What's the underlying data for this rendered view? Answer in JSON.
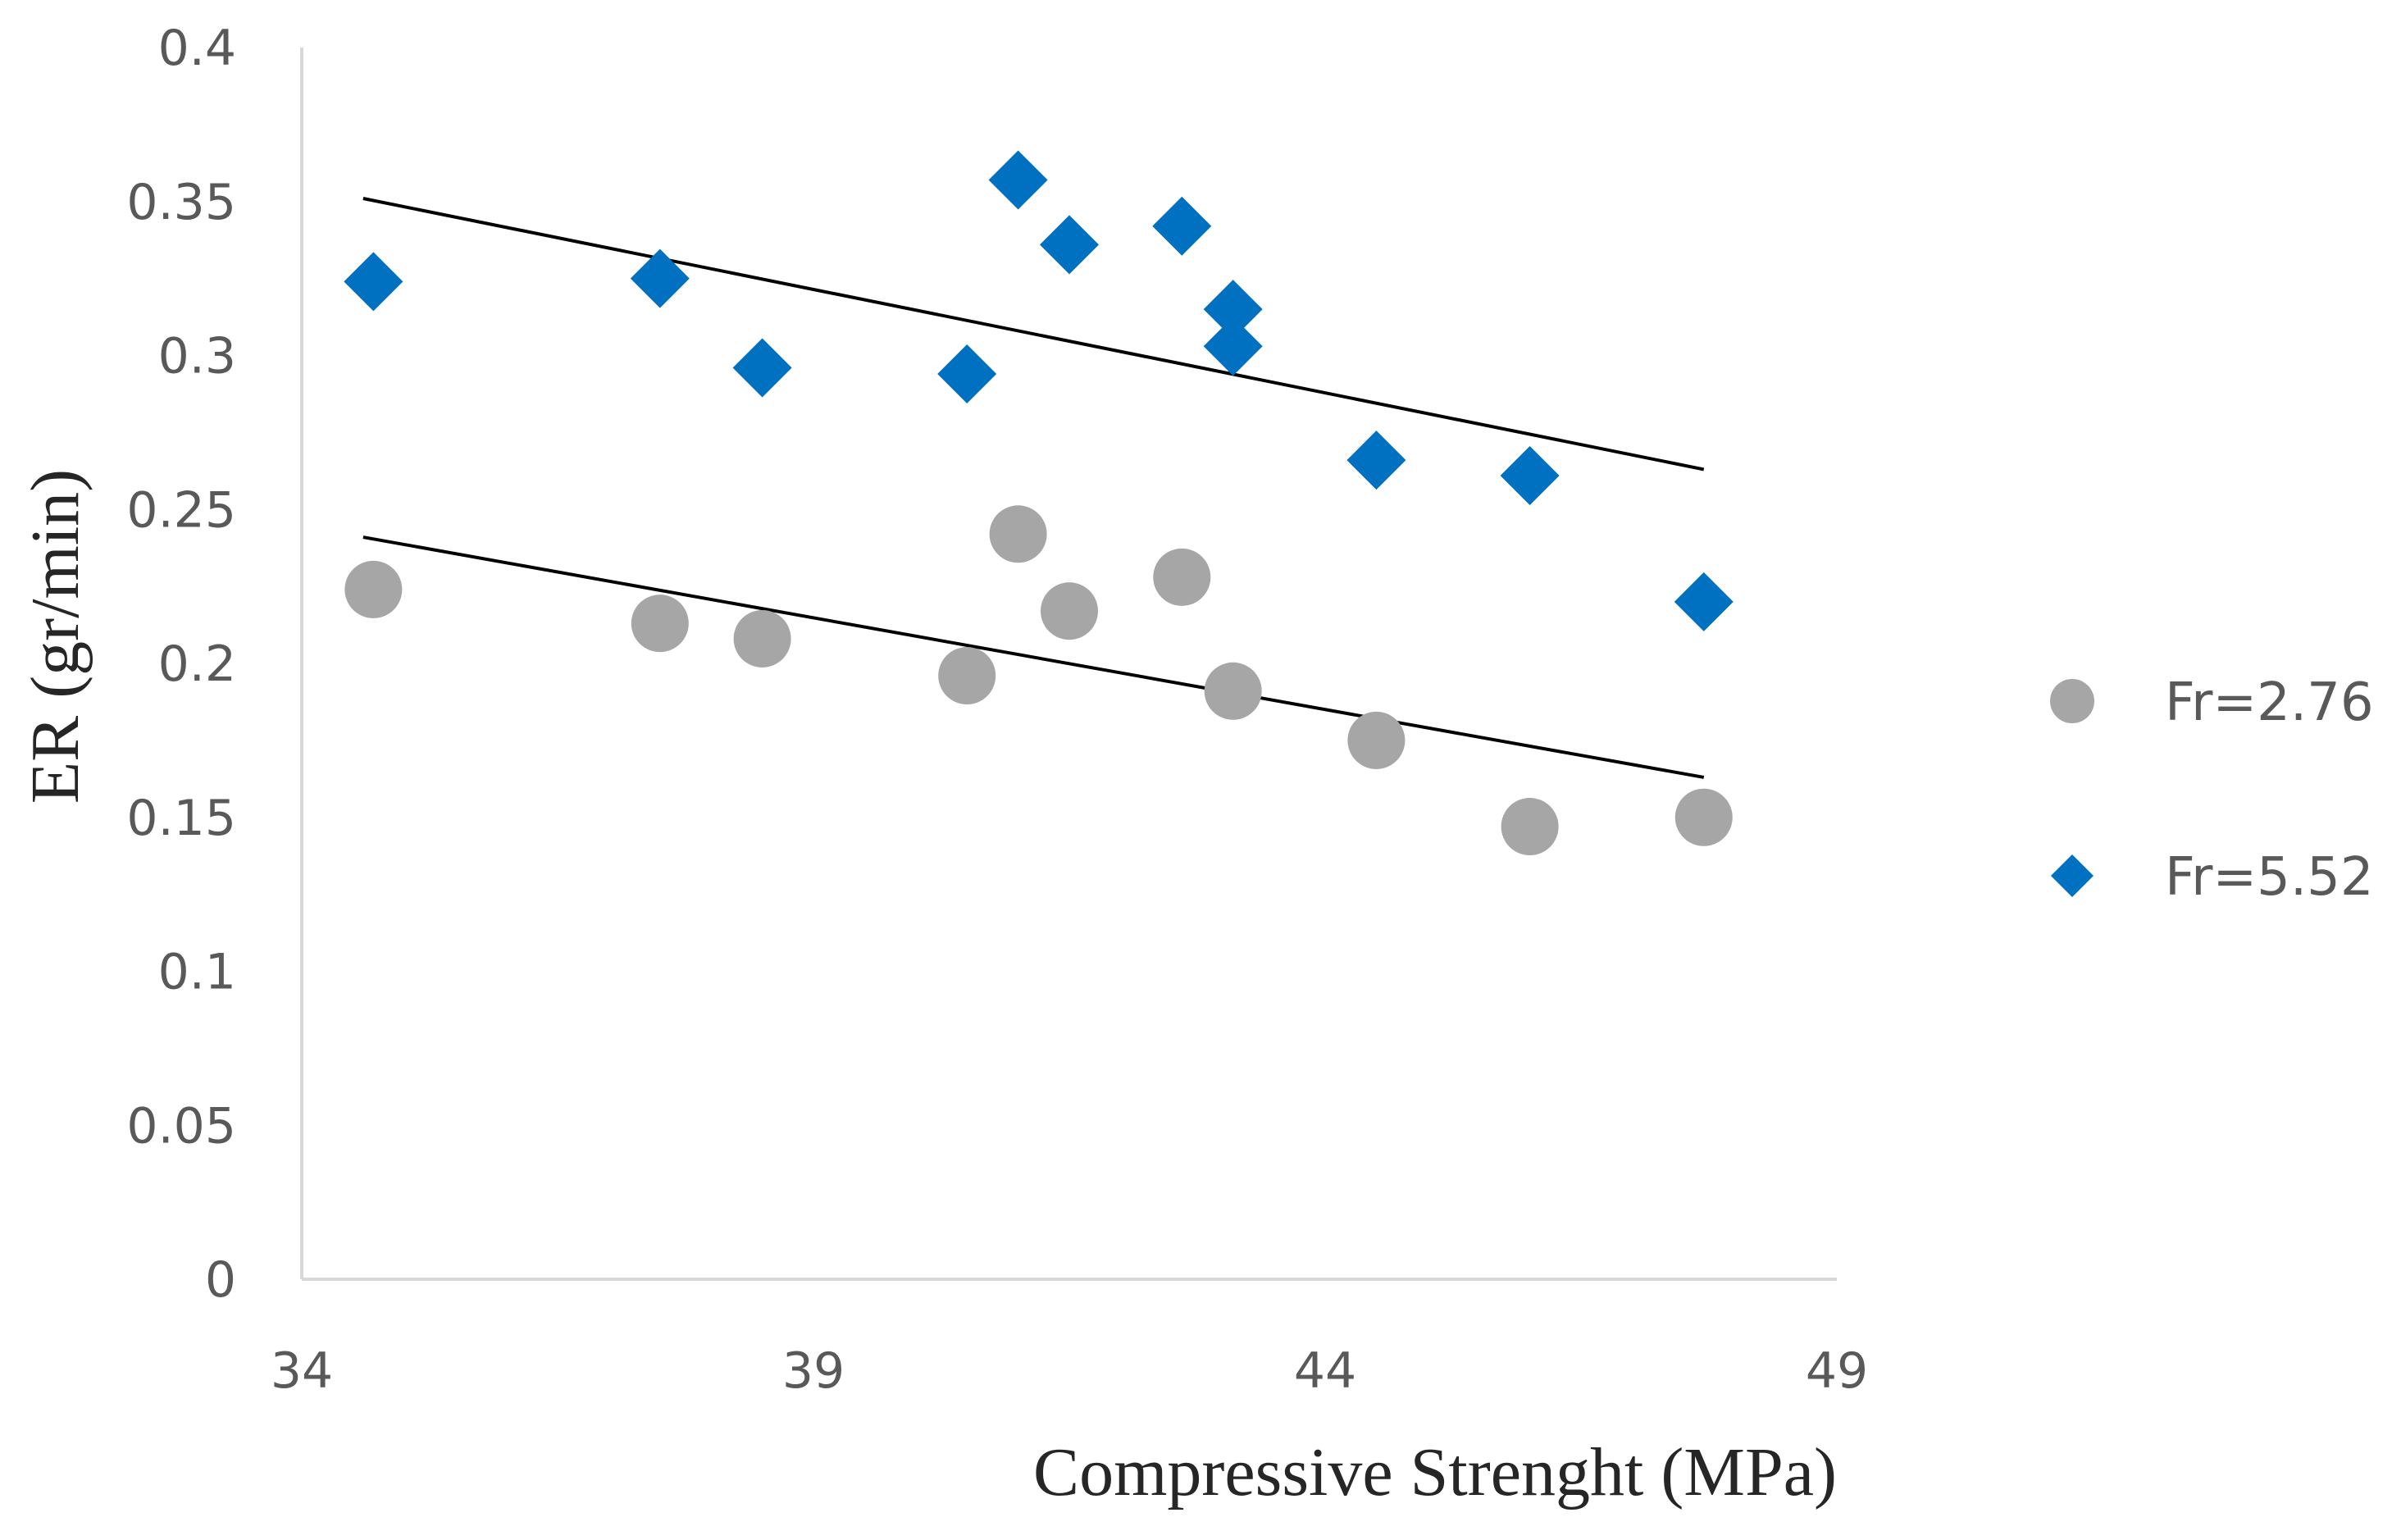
{
  "chart_data": {
    "type": "scatter",
    "title": "",
    "xlabel": "Compressive Strenght (MPa)",
    "ylabel": "ER (gr/min)",
    "xlim": [
      34,
      49
    ],
    "ylim": [
      0,
      0.4
    ],
    "x_ticks": [
      {
        "value": 34,
        "label": "34"
      },
      {
        "value": 39,
        "label": "39"
      },
      {
        "value": 44,
        "label": "44"
      },
      {
        "value": 49,
        "label": "49"
      }
    ],
    "y_ticks": [
      {
        "value": 0,
        "label": "0"
      },
      {
        "value": 0.05,
        "label": "0.05"
      },
      {
        "value": 0.1,
        "label": "0.1"
      },
      {
        "value": 0.15,
        "label": "0.15"
      },
      {
        "value": 0.2,
        "label": "0.2"
      },
      {
        "value": 0.25,
        "label": "0.25"
      },
      {
        "value": 0.3,
        "label": "0.3"
      },
      {
        "value": 0.35,
        "label": "0.35"
      },
      {
        "value": 0.4,
        "label": "0.4"
      }
    ],
    "grid": false,
    "legend_position": "right",
    "series": [
      {
        "name": "Fr=2.76",
        "marker": "circle",
        "color": "#A6A6A6",
        "points": [
          {
            "x": 34.7,
            "y": 0.224
          },
          {
            "x": 37.5,
            "y": 0.213
          },
          {
            "x": 38.5,
            "y": 0.208
          },
          {
            "x": 40.5,
            "y": 0.196
          },
          {
            "x": 41.0,
            "y": 0.242
          },
          {
            "x": 41.5,
            "y": 0.217
          },
          {
            "x": 42.6,
            "y": 0.228
          },
          {
            "x": 43.1,
            "y": 0.191
          },
          {
            "x": 44.5,
            "y": 0.175
          },
          {
            "x": 46.0,
            "y": 0.147
          },
          {
            "x": 47.7,
            "y": 0.15
          }
        ],
        "trendline": {
          "x": [
            34.6,
            47.7
          ],
          "y": [
            0.241,
            0.163
          ],
          "color": "#000000"
        }
      },
      {
        "name": "Fr=5.52",
        "marker": "diamond",
        "color": "#0070C0",
        "points": [
          {
            "x": 34.7,
            "y": 0.324
          },
          {
            "x": 37.5,
            "y": 0.325
          },
          {
            "x": 38.5,
            "y": 0.296
          },
          {
            "x": 40.5,
            "y": 0.294
          },
          {
            "x": 41.0,
            "y": 0.357
          },
          {
            "x": 41.5,
            "y": 0.336
          },
          {
            "x": 42.6,
            "y": 0.342
          },
          {
            "x": 43.1,
            "y": 0.315
          },
          {
            "x": 43.1,
            "y": 0.303
          },
          {
            "x": 44.5,
            "y": 0.266
          },
          {
            "x": 46.0,
            "y": 0.261
          },
          {
            "x": 47.7,
            "y": 0.22
          }
        ],
        "trendline": {
          "x": [
            34.6,
            47.7
          ],
          "y": [
            0.351,
            0.263
          ],
          "color": "#000000"
        }
      }
    ]
  },
  "colors": {
    "axis": "#D9D9D9",
    "tick_text": "#595959",
    "title_text": "#262626"
  }
}
